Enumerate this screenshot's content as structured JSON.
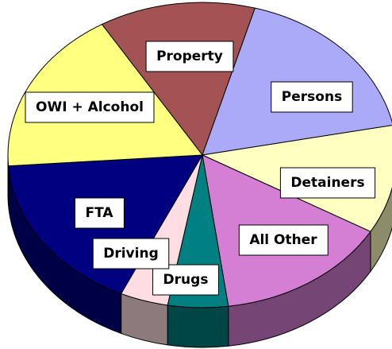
{
  "chart_data": {
    "type": "pie",
    "categories": [
      "Property",
      "Persons",
      "Detainers",
      "All Other",
      "Drugs",
      "Driving",
      "FTA",
      "OWI + Alcohol"
    ],
    "values": [
      13,
      17.5,
      11.5,
      14.5,
      5,
      4,
      17,
      17.5
    ],
    "colors": [
      "#a35353",
      "#aaaaf8",
      "#ffffc2",
      "#d47fd4",
      "#008080",
      "#ffdde2",
      "#000080",
      "#ffff80"
    ]
  }
}
